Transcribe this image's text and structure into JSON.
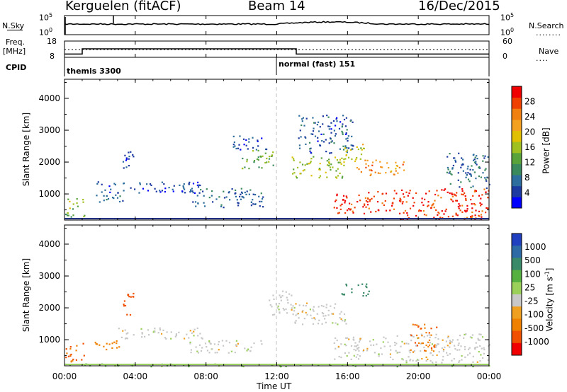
{
  "header": {
    "station": "Kerguelen (fitACF)",
    "beam": "Beam 14",
    "date": "16/Dec/2015"
  },
  "strip": {
    "nsky_label": "N.Sky",
    "nsearch_label": "N.Search",
    "freq_label": "Freq.",
    "freq_unit": "[MHz]",
    "nave_label": "Nave",
    "cpid_label": "CPID",
    "noise_ticks": [
      "10^5",
      "10^0"
    ],
    "noise_ticks_right": [
      "10^5",
      "10^0"
    ],
    "freq_ticks": [
      "18",
      "8"
    ],
    "nave_ticks": [
      "60",
      "0"
    ],
    "cpid_segments": [
      {
        "label": "themis 3300",
        "start": 0,
        "end": 12
      },
      {
        "label": "normal (fast) 151",
        "start": 12,
        "end": 24
      }
    ],
    "freq_steps": [
      {
        "t0": 0,
        "t1": 1,
        "mhz": 10
      },
      {
        "t0": 1,
        "t1": 13.1,
        "mhz": 13.2
      },
      {
        "t0": 13.1,
        "t1": 24,
        "mhz": 10
      }
    ]
  },
  "xaxis": {
    "label": "Time UT",
    "ticks": [
      "00:00",
      "04:00",
      "08:00",
      "12:00",
      "16:00",
      "20:00",
      "00:00"
    ]
  },
  "yaxis": {
    "label": "Slant Range [km]",
    "ticks": [
      "1000",
      "2000",
      "3000",
      "4000"
    ]
  },
  "colorbars": {
    "power": {
      "label": "Power [dB]",
      "ticks": [
        "28",
        "24",
        "20",
        "16",
        "12",
        "8",
        "4"
      ],
      "colors": [
        "#0000ff",
        "#1c3aa0",
        "#2d6e9e",
        "#3a8a5e",
        "#5aa23a",
        "#a0c020",
        "#e0c000",
        "#f4a020",
        "#f08010",
        "#f04000",
        "#f00000"
      ]
    },
    "velocity": {
      "label": "Velocity [m s^-1]",
      "ticks": [
        "1000",
        "500",
        "100",
        "25",
        "-25",
        "-100",
        "-500",
        "-1000"
      ],
      "colors": [
        "#2040c0",
        "#2e6aa6",
        "#3a8a6a",
        "#55b040",
        "#9ad05a",
        "#c8c8c8",
        "#f0a020",
        "#f08000",
        "#f05000",
        "#f00000"
      ]
    }
  },
  "chart_data": [
    {
      "type": "heatmap",
      "title": "Power",
      "xlabel": "Time UT",
      "ylabel": "Slant Range [km]",
      "xlim": [
        0,
        24
      ],
      "ylim": [
        180,
        4600
      ],
      "colorbar_label": "Power [dB]",
      "colorbar_range": [
        0,
        32
      ],
      "regions": [
        {
          "t0": 0.0,
          "t1": 1.1,
          "r0": 300,
          "r1": 900,
          "db": 14
        },
        {
          "t0": 1.6,
          "t1": 3.3,
          "r0": 700,
          "r1": 1000,
          "db": 5
        },
        {
          "t0": 1.8,
          "t1": 7.8,
          "r0": 1050,
          "r1": 1400,
          "db": 4
        },
        {
          "t0": 3.2,
          "t1": 3.9,
          "r0": 1800,
          "r1": 2500,
          "db": 4
        },
        {
          "t0": 7.0,
          "t1": 11.2,
          "r0": 600,
          "r1": 1200,
          "db": 6
        },
        {
          "t0": 9.5,
          "t1": 11.5,
          "r0": 2400,
          "r1": 2850,
          "db": 4
        },
        {
          "t0": 10.0,
          "t1": 11.8,
          "r0": 1800,
          "r1": 2400,
          "db": 14
        },
        {
          "t0": 12.8,
          "t1": 15.8,
          "r0": 1500,
          "r1": 2200,
          "db": 16
        },
        {
          "t0": 13.2,
          "t1": 16.3,
          "r0": 2300,
          "r1": 3500,
          "db": 5
        },
        {
          "t0": 15.6,
          "t1": 17.0,
          "r0": 2000,
          "r1": 2600,
          "db": 18
        },
        {
          "t0": 16.5,
          "t1": 19.2,
          "r0": 1600,
          "r1": 2100,
          "db": 24
        },
        {
          "t0": 18.5,
          "t1": 24.0,
          "r0": 200,
          "r1": 1200,
          "db": 30
        },
        {
          "t0": 15.2,
          "t1": 18.6,
          "r0": 400,
          "r1": 1100,
          "db": 30
        },
        {
          "t0": 21.5,
          "t1": 24.0,
          "r0": 1200,
          "r1": 2300,
          "db": 6
        }
      ]
    },
    {
      "type": "heatmap",
      "title": "Velocity",
      "xlabel": "Time UT",
      "ylabel": "Slant Range [km]",
      "xlim": [
        0,
        24
      ],
      "ylim": [
        180,
        4600
      ],
      "colorbar_label": "Velocity [m s^-1]",
      "colorbar_range": [
        -1000,
        1000
      ],
      "regions": [
        {
          "t0": 0.0,
          "t1": 1.1,
          "r0": 300,
          "r1": 900,
          "v": -300
        },
        {
          "t0": 1.6,
          "t1": 3.3,
          "r0": 700,
          "r1": 1000,
          "v": -200
        },
        {
          "t0": 3.2,
          "t1": 3.9,
          "r0": 1800,
          "r1": 2500,
          "v": -400
        },
        {
          "t0": 3.0,
          "t1": 7.8,
          "r0": 1050,
          "r1": 1400,
          "v": 0
        },
        {
          "t0": 7.0,
          "t1": 11.2,
          "r0": 600,
          "r1": 1000,
          "v": 0
        },
        {
          "t0": 11.5,
          "t1": 13.0,
          "r0": 1800,
          "r1": 2600,
          "v": 0
        },
        {
          "t0": 12.8,
          "t1": 16.0,
          "r0": 1500,
          "r1": 2200,
          "v": 0
        },
        {
          "t0": 15.6,
          "t1": 17.2,
          "r0": 2400,
          "r1": 2800,
          "v": 200
        },
        {
          "t0": 18.5,
          "t1": 24.0,
          "r0": 300,
          "r1": 1200,
          "v": 0
        },
        {
          "t0": 15.2,
          "t1": 18.6,
          "r0": 400,
          "r1": 1100,
          "v": 0
        },
        {
          "t0": 19.5,
          "t1": 21.0,
          "r0": 600,
          "r1": 1500,
          "v": -300
        },
        {
          "t0": 0.0,
          "t1": 24.0,
          "r0": 180,
          "r1": 260,
          "v": 60
        }
      ]
    }
  ]
}
